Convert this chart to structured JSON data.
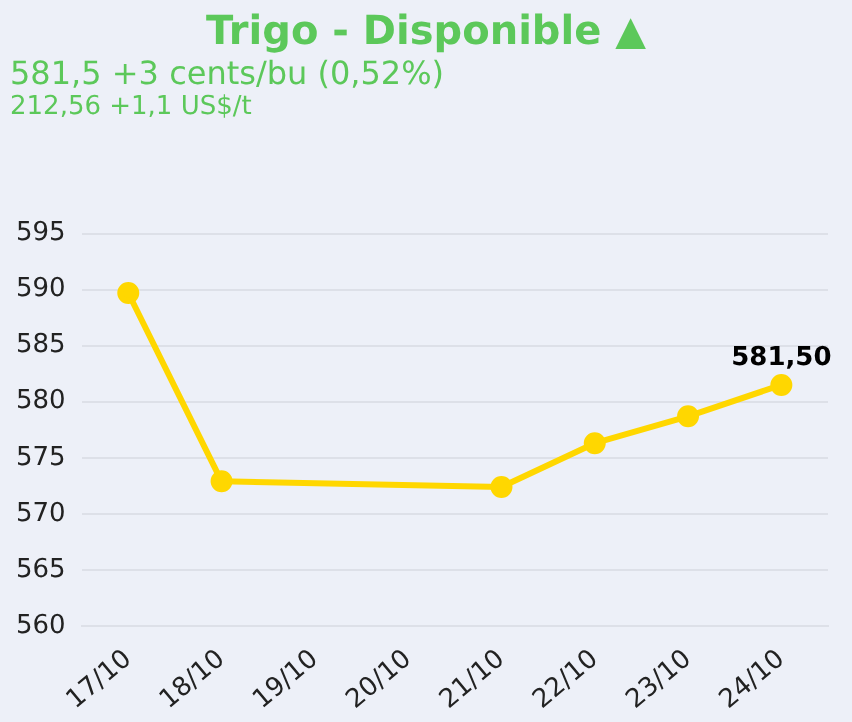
{
  "chart_data": {
    "type": "line",
    "title": "Trigo - Disponible ▲",
    "subtitle": "581,5 +3 cents/bu (0,52%)",
    "annotations": [
      "212,56 +1,1 US$/t",
      {
        "text": "581,50",
        "x": "24/10",
        "y": 581.5
      }
    ],
    "categories": [
      "17/10",
      "18/10",
      "19/10",
      "20/10",
      "21/10",
      "22/10",
      "23/10",
      "24/10"
    ],
    "series": [
      {
        "color": "#ffd700",
        "values": [
          589.7,
          572.9,
          null,
          null,
          572.4,
          576.3,
          578.7,
          581.5
        ]
      }
    ],
    "ylim": [
      560,
      595
    ],
    "yticks": [
      560,
      565,
      570,
      575,
      580,
      585,
      590,
      595
    ],
    "grid": "y",
    "marker": "circle",
    "legend": false
  }
}
